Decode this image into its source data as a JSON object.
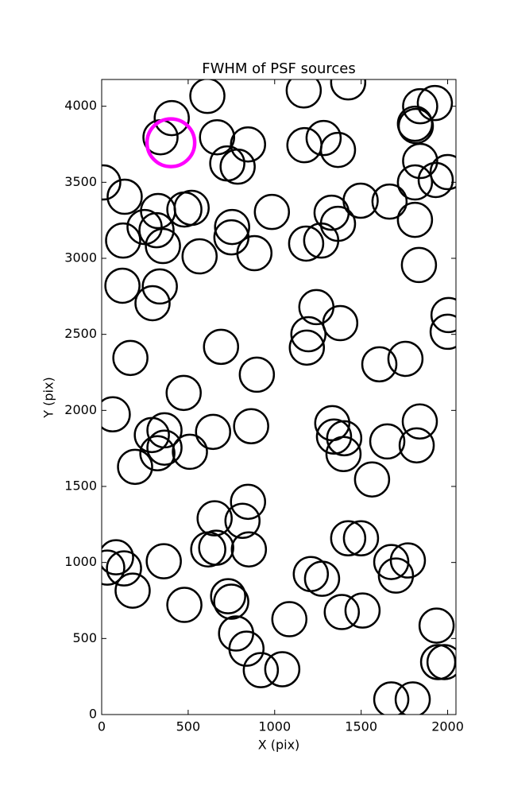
{
  "chart_data": {
    "type": "scatter",
    "title": "FWHM of PSF sources",
    "x_label": "X (pix)",
    "y_label": "Y (pix)",
    "xlim": [
      0,
      2048
    ],
    "ylim": [
      0,
      4176
    ],
    "xticks": [
      0,
      500,
      1000,
      1500,
      2000
    ],
    "yticks": [
      0,
      500,
      1000,
      1500,
      2000,
      2500,
      3000,
      3500,
      4000
    ],
    "series": [
      {
        "color": "#000000",
        "x": [
          611,
          340,
          405,
          667,
          846,
          726,
          786,
          9,
          133,
          326,
          248,
          317,
          124,
          354,
          478,
          520,
          566,
          754,
          750,
          883,
          984,
          1168,
          1425,
          1172,
          1283,
          1366,
          1182,
          1269,
          1329,
          1366,
          1497,
          1664,
          1841,
          1811,
          1816,
          1926,
          1841,
          1811,
          1931,
          2000,
          1811,
          1834,
          2005,
          2000,
          120,
          336,
          294,
          166,
          690,
          474,
          897,
          64,
          1241,
          1195,
          1186,
          1379,
          1605,
          1756,
          1333,
          1343,
          1402,
          1398,
          1651,
          1839,
          1821,
          1563,
          290,
          363,
          322,
          363,
          510,
          644,
          864,
          193,
          653,
          814,
          846,
          616,
          662,
          851,
          83,
          129,
          32,
          359,
          179,
          478,
          731,
          749,
          777,
          837,
          920,
          1044,
          1085,
          1209,
          1274,
          1425,
          1499,
          1388,
          1508,
          1674,
          1701,
          1770,
          1936,
          1945,
          1982,
          1674,
          1798
        ],
        "y": [
          4068,
          3796,
          3922,
          3796,
          3749,
          3624,
          3603,
          3499,
          3405,
          3311,
          3206,
          3185,
          3117,
          3081,
          3321,
          3332,
          3013,
          3206,
          3138,
          3034,
          3305,
          4104,
          4157,
          3744,
          3791,
          3713,
          3097,
          3117,
          3300,
          3227,
          3379,
          3373,
          4000,
          3885,
          3870,
          4021,
          3640,
          3499,
          3515,
          3567,
          3253,
          2956,
          2627,
          2517,
          2820,
          2815,
          2705,
          2345,
          2418,
          2115,
          2235,
          1974,
          2679,
          2501,
          2413,
          2574,
          2303,
          2339,
          1916,
          1828,
          1817,
          1713,
          1796,
          1927,
          1770,
          1546,
          1838,
          1869,
          1718,
          1755,
          1728,
          1859,
          1896,
          1629,
          1290,
          1274,
          1399,
          1086,
          1097,
          1086,
          1034,
          961,
          966,
          1008,
          815,
          721,
          778,
          742,
          533,
          433,
          292,
          298,
          627,
          924,
          893,
          1159,
          1159,
          674,
          684,
          1003,
          914,
          1013,
          585,
          345,
          345,
          99,
          99
        ]
      },
      {
        "color": "#ff00ff",
        "x": [
          400
        ],
        "y": [
          3760
        ]
      }
    ]
  }
}
